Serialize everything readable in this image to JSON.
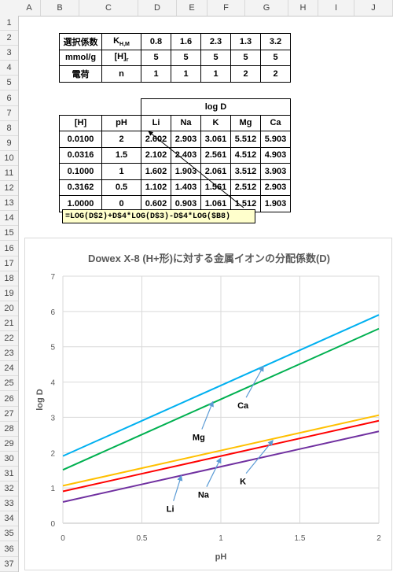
{
  "sheet": {
    "columns": [
      "A",
      "B",
      "C",
      "D",
      "E",
      "F",
      "G",
      "H",
      "I",
      "J"
    ],
    "rows": [
      "1",
      "2",
      "3",
      "4",
      "5",
      "6",
      "7",
      "8",
      "9",
      "10",
      "11",
      "12",
      "13",
      "14",
      "15",
      "16",
      "17",
      "18",
      "19",
      "20",
      "21",
      "22",
      "23",
      "24",
      "25",
      "26",
      "27",
      "28",
      "29",
      "30",
      "31",
      "32",
      "33",
      "34",
      "35",
      "36",
      "37"
    ]
  },
  "table1": {
    "rows": [
      {
        "label": "選択係数",
        "symbol": "K",
        "symbol_sub": "H,M",
        "values": [
          "0.8",
          "1.6",
          "2.3",
          "1.3",
          "3.2"
        ]
      },
      {
        "label": "mmol/g",
        "symbol": "[H]",
        "symbol_sub": "r",
        "values": [
          "5",
          "5",
          "5",
          "5",
          "5"
        ]
      },
      {
        "label": "電荷",
        "symbol": "n",
        "symbol_sub": "",
        "values": [
          "1",
          "1",
          "1",
          "2",
          "2"
        ]
      }
    ]
  },
  "table2": {
    "group_header": "log D",
    "headers": [
      "[H]",
      "pH",
      "Li",
      "Na",
      "K",
      "Mg",
      "Ca"
    ],
    "rows": [
      [
        "0.0100",
        "2",
        "2.602",
        "2.903",
        "3.061",
        "5.512",
        "5.903"
      ],
      [
        "0.0316",
        "1.5",
        "2.102",
        "2.403",
        "2.561",
        "4.512",
        "4.903"
      ],
      [
        "0.1000",
        "1",
        "1.602",
        "1.903",
        "2.061",
        "3.512",
        "3.903"
      ],
      [
        "0.3162",
        "0.5",
        "1.102",
        "1.403",
        "1.561",
        "2.512",
        "2.903"
      ],
      [
        "1.0000",
        "0",
        "0.602",
        "0.903",
        "1.061",
        "1.512",
        "1.903"
      ]
    ]
  },
  "formula": "=LOG(D$2)+D$4*LOG(D$3)-D$4*LOG($B8)",
  "chart_data": {
    "type": "line",
    "title": "Dowex X-8 (H+形)に対する金属イオンの分配係数(D)",
    "xlabel": "pH",
    "ylabel": "log D",
    "xlim": [
      0,
      2
    ],
    "ylim": [
      0,
      7
    ],
    "xticks": [
      "0",
      "0.5",
      "1",
      "1.5",
      "2"
    ],
    "yticks": [
      "0",
      "1",
      "2",
      "3",
      "4",
      "5",
      "6",
      "7"
    ],
    "grid": true,
    "x": [
      0,
      0.5,
      1,
      1.5,
      2
    ],
    "series": [
      {
        "name": "Li",
        "color": "#7030a0",
        "values": [
          0.602,
          1.102,
          1.602,
          2.102,
          2.602
        ]
      },
      {
        "name": "Na",
        "color": "#ff0000",
        "values": [
          0.903,
          1.403,
          1.903,
          2.403,
          2.903
        ]
      },
      {
        "name": "K",
        "color": "#ffc000",
        "values": [
          1.061,
          1.561,
          2.061,
          2.561,
          3.061
        ]
      },
      {
        "name": "Mg",
        "color": "#00b050",
        "values": [
          1.512,
          2.512,
          3.512,
          4.512,
          5.512
        ]
      },
      {
        "name": "Ca",
        "color": "#00b0f0",
        "values": [
          1.903,
          2.903,
          3.903,
          4.903,
          5.903
        ]
      }
    ],
    "annotations": [
      {
        "text": "Li",
        "label_x": 0.68,
        "label_y": 0.32,
        "tip_x": 0.75,
        "tip_y": 1.35
      },
      {
        "text": "Na",
        "label_x": 0.89,
        "label_y": 0.72,
        "tip_x": 1.0,
        "tip_y": 1.85
      },
      {
        "text": "K",
        "label_x": 1.14,
        "label_y": 1.1,
        "tip_x": 1.33,
        "tip_y": 2.35
      },
      {
        "text": "Mg",
        "label_x": 0.86,
        "label_y": 2.35,
        "tip_x": 0.95,
        "tip_y": 3.45
      },
      {
        "text": "Ca",
        "label_x": 1.14,
        "label_y": 3.25,
        "tip_x": 1.27,
        "tip_y": 4.45
      }
    ]
  }
}
